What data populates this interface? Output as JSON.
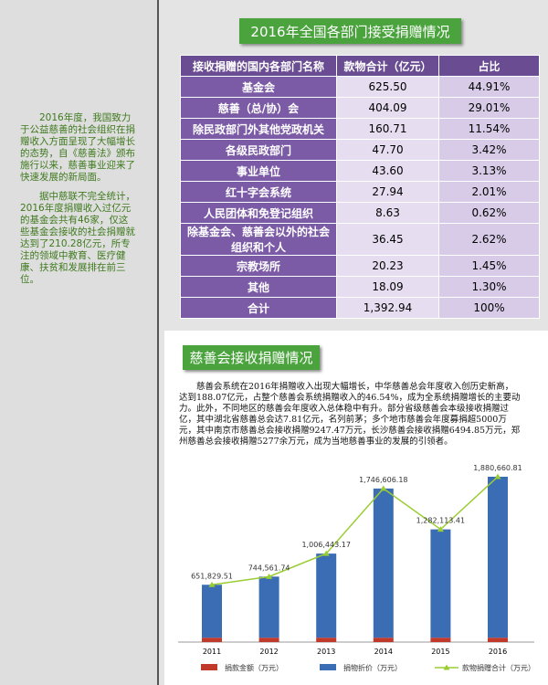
{
  "sidebar": {
    "paragraphs": [
      "2016年度，我国致力于公益慈善的社会组织在捐赠收入方面呈现了大幅增长的态势，自《慈善法》颁布施行以来，慈善事业迎来了快速发展的新局面。",
      "据中慈联不完全统计，2016年度捐赠收入过亿元的基金会共有46家，仅这些基金会接收的社会捐赠就达到了210.28亿元，所专注的领域中教育、医疗健康、扶贫和发展排在前三位。"
    ]
  },
  "table": {
    "title": "2016年全国各部门接受捐赠情况",
    "header": [
      "接收捐赠的国内各部门名称",
      "款物合计（亿元）",
      "占比"
    ],
    "rows": [
      [
        "基金会",
        "625.50",
        "44.91%"
      ],
      [
        "慈善（总/协）会",
        "404.09",
        "29.01%"
      ],
      [
        "除民政部门外其他党政机关",
        "160.71",
        "11.54%"
      ],
      [
        "各级民政部门",
        "47.70",
        "3.42%"
      ],
      [
        "事业单位",
        "43.60",
        "3.13%"
      ],
      [
        "红十字会系统",
        "27.94",
        "2.01%"
      ],
      [
        "人民团体和免登记组织",
        "8.63",
        "0.62%"
      ],
      [
        "除基金会、慈善会以外的社会组织和个人",
        "36.45",
        "2.62%"
      ],
      [
        "宗教场所",
        "20.23",
        "1.45%"
      ],
      [
        "其他",
        "18.09",
        "1.30%"
      ],
      [
        "合计",
        "1,392.94",
        "100%"
      ]
    ]
  },
  "section": {
    "title": "慈善会接收捐赠情况",
    "text": "慈善会系统在2016年捐赠收入出现大幅增长，中华慈善总会年度收入创历史新高，达到188.07亿元，占整个慈善会系统捐赠收入的46.54%，成为全系统捐赠增长的主要动力。此外，不同地区的慈善会年度收入总体稳中有升。部分省级慈善会本级接收捐赠过亿，其中湖北省慈善总会达7.81亿元，名列前茅；多个地市慈善会年度募捐超5000万元，其中南京市慈善总会接收捐赠9247.47万元，长沙慈善会接收捐赠6494.85万元，郑州慈善总会接收捐赠5277余万元，成为当地慈善事业的发展的引领者。"
  },
  "chart_data": {
    "type": "bar",
    "categories": [
      "2011",
      "2012",
      "2013",
      "2014",
      "2015",
      "2016"
    ],
    "ylim": [
      0,
      2000000
    ],
    "series": [
      {
        "name": "捐款金额（万元）",
        "color": "#c0392b",
        "values": [
          50000,
          50000,
          50000,
          50000,
          50000,
          50000
        ]
      },
      {
        "name": "捐物折价（万元）",
        "color": "#3b6db5",
        "values": [
          601830,
          694562,
          956443,
          1696606,
          1232113,
          1830661
        ]
      },
      {
        "name": "款物捐赠合计（万元）",
        "color": "#9acd32",
        "type": "line",
        "values": [
          651829.51,
          744561.74,
          1006443.17,
          1746606.18,
          1282113.41,
          1880660.81
        ],
        "value_labels": [
          "651,829.51",
          "744,561.74",
          "1,006,443.17",
          "1,746,606.18",
          "1,282,113.41",
          "1,880,660.81"
        ]
      }
    ]
  }
}
